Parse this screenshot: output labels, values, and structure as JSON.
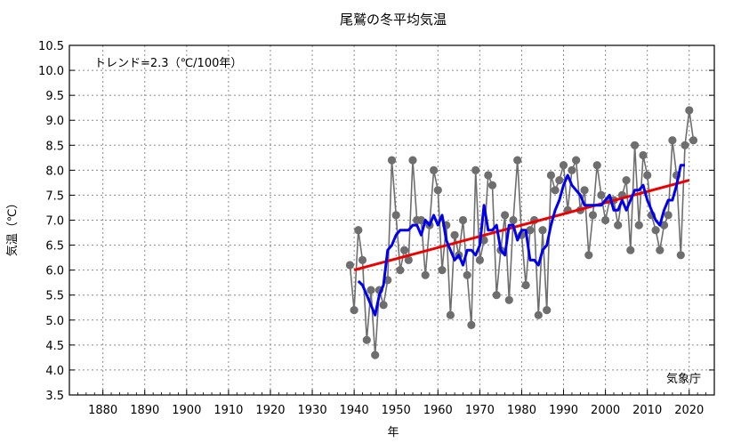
{
  "chart_data": {
    "type": "line",
    "title": "尾鷲の冬平均気温",
    "xlabel": "年",
    "ylabel": "気温（℃）",
    "annotation": "トレンド=2.3（℃/100年）",
    "source": "気象庁",
    "xlim": [
      1872,
      2026
    ],
    "ylim": [
      3.5,
      10.5
    ],
    "xticks": [
      1880,
      1890,
      1900,
      1910,
      1920,
      1930,
      1940,
      1950,
      1960,
      1970,
      1980,
      1990,
      2000,
      2010,
      2020
    ],
    "yticks": [
      3.5,
      4.0,
      4.5,
      5.0,
      5.5,
      6.0,
      6.5,
      7.0,
      7.5,
      8.0,
      8.5,
      9.0,
      9.5,
      10.0,
      10.5
    ],
    "grid": true,
    "colors": {
      "annual": "#6e6e6e",
      "moving_average": "#0000ee",
      "trend": "#ee0000"
    },
    "series": [
      {
        "key": "annual",
        "x": [
          1939,
          1940,
          1941,
          1942,
          1943,
          1944,
          1945,
          1946,
          1947,
          1948,
          1949,
          1950,
          1951,
          1952,
          1953,
          1954,
          1955,
          1956,
          1957,
          1958,
          1959,
          1960,
          1961,
          1962,
          1963,
          1964,
          1965,
          1966,
          1967,
          1968,
          1969,
          1970,
          1971,
          1972,
          1973,
          1974,
          1975,
          1976,
          1977,
          1978,
          1979,
          1980,
          1981,
          1982,
          1983,
          1984,
          1985,
          1986,
          1987,
          1988,
          1989,
          1990,
          1991,
          1992,
          1993,
          1994,
          1995,
          1996,
          1997,
          1998,
          1999,
          2000,
          2001,
          2002,
          2003,
          2004,
          2005,
          2006,
          2007,
          2008,
          2009,
          2010,
          2011,
          2012,
          2013,
          2014,
          2015,
          2016,
          2017,
          2018,
          2019,
          2020,
          2021
        ],
        "values": [
          6.1,
          5.2,
          6.8,
          6.2,
          4.6,
          5.6,
          4.3,
          5.6,
          5.3,
          5.8,
          8.2,
          7.1,
          6.0,
          6.4,
          6.2,
          8.2,
          7.0,
          7.0,
          5.9,
          6.9,
          8.0,
          7.6,
          6.0,
          6.9,
          5.1,
          6.7,
          6.3,
          7.0,
          5.9,
          4.9,
          8.0,
          6.2,
          6.6,
          7.9,
          7.7,
          5.5,
          6.4,
          7.1,
          5.4,
          7.0,
          8.2,
          6.7,
          5.7,
          6.8,
          7.0,
          5.1,
          6.8,
          5.2,
          7.9,
          7.6,
          7.8,
          8.1,
          7.2,
          8.0,
          8.2,
          7.2,
          7.6,
          6.3,
          7.1,
          8.1,
          7.5,
          7.0,
          7.4,
          7.4,
          6.9,
          7.5,
          7.8,
          6.4,
          8.5,
          6.9,
          8.3,
          7.9,
          7.1,
          6.8,
          6.4,
          6.9,
          7.1,
          8.6,
          7.9,
          6.3,
          8.5,
          9.2,
          8.6
        ]
      },
      {
        "key": "moving_average",
        "x": [
          1941,
          1942,
          1943,
          1944,
          1945,
          1946,
          1947,
          1948,
          1949,
          1950,
          1951,
          1952,
          1953,
          1954,
          1955,
          1956,
          1957,
          1958,
          1959,
          1960,
          1961,
          1962,
          1963,
          1964,
          1965,
          1966,
          1967,
          1968,
          1969,
          1970,
          1971,
          1972,
          1973,
          1974,
          1975,
          1976,
          1977,
          1978,
          1979,
          1980,
          1981,
          1982,
          1983,
          1984,
          1985,
          1986,
          1987,
          1988,
          1989,
          1990,
          1991,
          1992,
          1993,
          1994,
          1995,
          1996,
          1997,
          1998,
          1999,
          2000,
          2001,
          2002,
          2003,
          2004,
          2005,
          2006,
          2007,
          2008,
          2009,
          2010,
          2011,
          2012,
          2013,
          2014,
          2015,
          2016,
          2017,
          2018,
          2019
        ],
        "values": [
          5.78,
          5.7,
          5.5,
          5.3,
          5.1,
          5.5,
          5.7,
          6.4,
          6.5,
          6.7,
          6.8,
          6.8,
          6.8,
          6.9,
          6.9,
          6.7,
          7.0,
          6.9,
          7.1,
          6.9,
          7.1,
          6.6,
          6.4,
          6.2,
          6.3,
          6.1,
          6.4,
          6.4,
          6.3,
          6.5,
          7.3,
          6.8,
          6.8,
          6.9,
          6.4,
          6.3,
          6.9,
          6.9,
          6.6,
          6.8,
          6.8,
          6.2,
          6.2,
          6.1,
          6.4,
          6.5,
          6.9,
          7.2,
          7.4,
          7.7,
          7.9,
          7.7,
          7.6,
          7.5,
          7.3,
          7.3,
          7.3,
          7.3,
          7.3,
          7.4,
          7.5,
          7.2,
          7.2,
          7.4,
          7.2,
          7.4,
          7.6,
          7.6,
          7.7,
          7.4,
          7.2,
          7.0,
          6.9,
          7.2,
          7.4,
          7.4,
          7.7,
          8.1,
          8.1
        ]
      },
      {
        "key": "trend",
        "x": [
          1940,
          2020
        ],
        "values": [
          6.0,
          7.8
        ]
      }
    ]
  }
}
